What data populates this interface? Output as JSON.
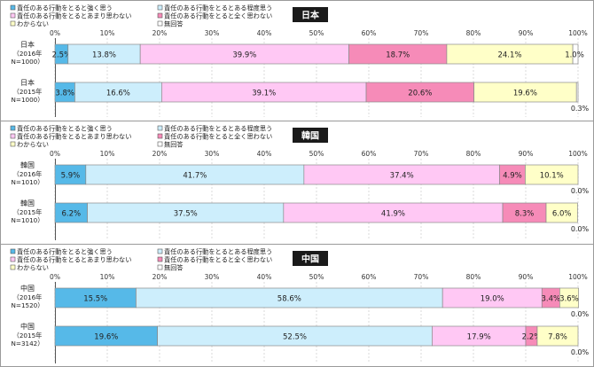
{
  "x_axis": {
    "ticks": [
      "0%",
      "10%",
      "20%",
      "30%",
      "40%",
      "50%",
      "60%",
      "70%",
      "80%",
      "90%",
      "100%"
    ]
  },
  "legend": [
    "責任のある行動をとると強く思う",
    "責任のある行動をとるとある程度思う",
    "責任のある行動をとるとあまり思わない",
    "責任のある行動をとると全く思わない",
    "わからない",
    "無回答"
  ],
  "colors": [
    "#56b9e8",
    "#cdeefc",
    "#ffc8f4",
    "#f68bb8",
    "#ffffc8",
    "#ffffff"
  ],
  "chart_data": [
    {
      "type": "bar",
      "title": "日本",
      "categories": [
        [
          "日本",
          "（2016年",
          "N=1000）"
        ],
        [
          "日本",
          "（2015年",
          "N=1000）"
        ]
      ],
      "series": [
        {
          "name": "責任のある行動をとると強く思う",
          "values": [
            2.5,
            3.8
          ]
        },
        {
          "name": "責任のある行動をとるとある程度思う",
          "values": [
            13.8,
            16.6
          ]
        },
        {
          "name": "責任のある行動をとるとあまり思わない",
          "values": [
            39.9,
            39.1
          ]
        },
        {
          "name": "責任のある行動をとると全く思わない",
          "values": [
            18.7,
            20.6
          ]
        },
        {
          "name": "わからない",
          "values": [
            24.1,
            19.6
          ]
        },
        {
          "name": "無回答",
          "values": [
            1.0,
            0.3
          ]
        }
      ],
      "xlim": [
        0,
        100
      ]
    },
    {
      "type": "bar",
      "title": "韓国",
      "categories": [
        [
          "韓国",
          "（2016年",
          "N=1010）"
        ],
        [
          "韓国",
          "（2015年",
          "N=1010）"
        ]
      ],
      "series": [
        {
          "name": "責任のある行動をとると強く思う",
          "values": [
            5.9,
            6.2
          ]
        },
        {
          "name": "責任のある行動をとるとある程度思う",
          "values": [
            41.7,
            37.5
          ]
        },
        {
          "name": "責任のある行動をとるとあまり思わない",
          "values": [
            37.4,
            41.9
          ]
        },
        {
          "name": "責任のある行動をとると全く思わない",
          "values": [
            4.9,
            8.3
          ]
        },
        {
          "name": "わからない",
          "values": [
            10.1,
            6.0
          ]
        },
        {
          "name": "無回答",
          "values": [
            0.0,
            0.0
          ]
        }
      ],
      "xlim": [
        0,
        100
      ]
    },
    {
      "type": "bar",
      "title": "中国",
      "categories": [
        [
          "中国",
          "（2016年",
          "N=1520）"
        ],
        [
          "中国",
          "（2015年",
          "N=3142）"
        ]
      ],
      "series": [
        {
          "name": "責任のある行動をとると強く思う",
          "values": [
            15.5,
            19.6
          ]
        },
        {
          "name": "責任のある行動をとるとある程度思う",
          "values": [
            58.6,
            52.5
          ]
        },
        {
          "name": "責任のある行動をとるとあまり思わない",
          "values": [
            19.0,
            17.9
          ]
        },
        {
          "name": "責任のある行動をとると全く思わない",
          "values": [
            3.4,
            2.2
          ]
        },
        {
          "name": "わからない",
          "values": [
            3.6,
            7.8
          ]
        },
        {
          "name": "無回答",
          "values": [
            0.0,
            0.0
          ]
        }
      ],
      "xlim": [
        0,
        100
      ]
    }
  ]
}
